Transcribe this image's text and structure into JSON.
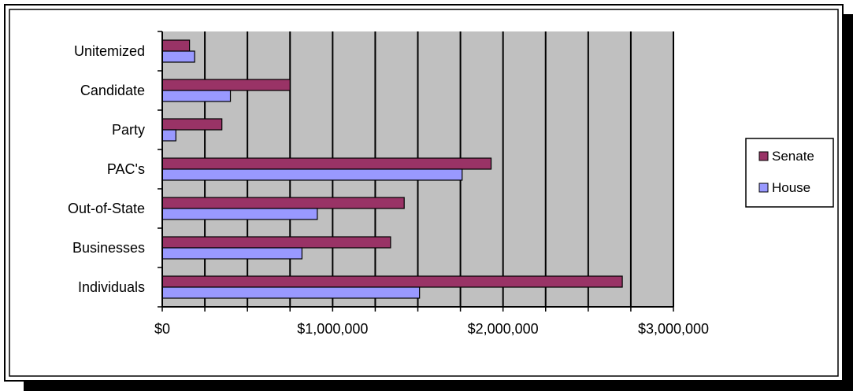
{
  "chart_data": {
    "type": "bar",
    "orientation": "horizontal",
    "categories": [
      "Individuals",
      "Businesses",
      "Out-of-State",
      "PAC's",
      "Party",
      "Candidate",
      "Unitemized"
    ],
    "series": [
      {
        "name": "Senate",
        "values": [
          2700000,
          1340000,
          1420000,
          1930000,
          350000,
          750000,
          160000
        ],
        "color": "#993366"
      },
      {
        "name": "House",
        "values": [
          1510000,
          820000,
          910000,
          1760000,
          80000,
          400000,
          190000
        ],
        "color": "#9999ff"
      }
    ],
    "xlim": [
      0,
      3000000
    ],
    "x_ticks": [
      "$0",
      "$1,000,000",
      "$2,000,000",
      "$3,000,000"
    ],
    "x_tick_values": [
      0,
      1000000,
      2000000,
      3000000
    ],
    "gridline_step": 250000,
    "grid": true,
    "plot_background": "#c0c0c0",
    "legend": "right",
    "title": "",
    "xlabel": "",
    "ylabel": ""
  }
}
